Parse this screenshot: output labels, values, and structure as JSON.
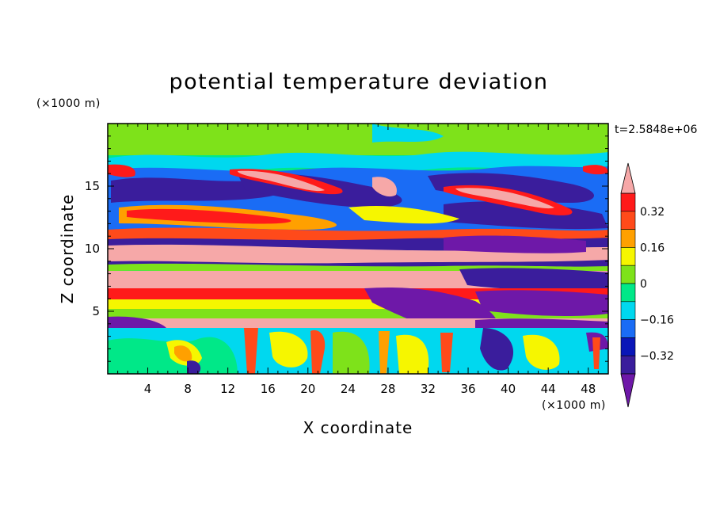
{
  "chart_data": {
    "type": "heatmap",
    "title": "potential temperature deviation",
    "xlabel": "X coordinate",
    "ylabel": "Z coordinate",
    "x_unit_label": "(×1000 m)",
    "y_unit_label": "(×1000 m)",
    "time_label": "t=2.5848e+06",
    "xlim": [
      0,
      50
    ],
    "ylim": [
      0,
      20
    ],
    "x_ticks": [
      4,
      8,
      12,
      16,
      20,
      24,
      28,
      32,
      36,
      40,
      44,
      48
    ],
    "y_ticks": [
      5,
      10,
      15
    ],
    "colorbar": {
      "levels": [
        -0.4,
        -0.32,
        -0.24,
        -0.16,
        -0.08,
        0,
        0.08,
        0.16,
        0.24,
        0.32,
        0.4
      ],
      "tick_labels": [
        "0.32",
        "0.16",
        "0",
        "−0.16",
        "−0.32"
      ],
      "tick_values": [
        0.32,
        0.16,
        0,
        -0.16,
        -0.32
      ],
      "extend": "both",
      "colors": [
        "#6e18a8",
        "#3a1d9c",
        "#0a16b8",
        "#1a6cf5",
        "#00d8ef",
        "#00e888",
        "#7ee21a",
        "#f6f600",
        "#ffa000",
        "#ff4a1a",
        "#ff1a1a",
        "#f6a8a8"
      ]
    },
    "bands": [
      {
        "z": [
          0.5,
          4.3
        ],
        "value": "mixed: cyan/green/yellow plumes, red updrafts near x=12,18,24,27,31"
      },
      {
        "z": [
          4.0,
          4.6
        ],
        "value": 0.45
      },
      {
        "z": [
          4.6,
          5.6
        ],
        "value": "mixed purple/green"
      },
      {
        "z": [
          5.6,
          6.5
        ],
        "value": 0.2
      },
      {
        "z": [
          6.5,
          7.2
        ],
        "value": 0.35
      },
      {
        "z": [
          7.2,
          8.3
        ],
        "value": 0.45
      },
      {
        "z": [
          8.3,
          11.5
        ],
        "value": "purple/red alternating layers"
      },
      {
        "z": [
          11.5,
          17.5
        ],
        "value": "tilted wave bands, purple and salmon"
      },
      {
        "z": [
          17.5,
          20.0
        ],
        "value": 0.05
      }
    ]
  }
}
